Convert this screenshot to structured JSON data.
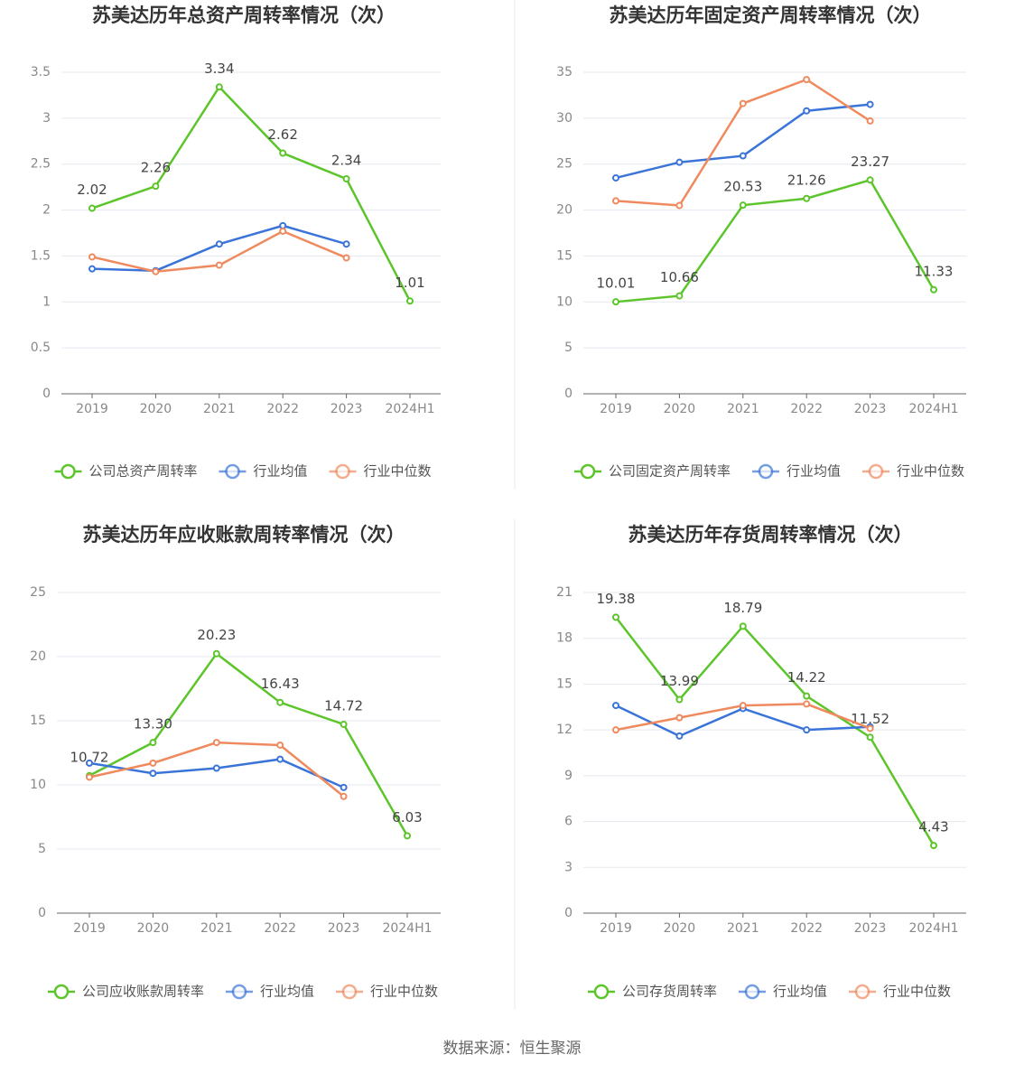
{
  "chart_data": [
    {
      "type": "line",
      "title": "苏美达历年总资产周转率情况（次）",
      "categories": [
        "2019",
        "2020",
        "2021",
        "2022",
        "2023",
        "2024H1"
      ],
      "ylim": [
        0,
        3.5
      ],
      "yticks": [
        0,
        0.5,
        1,
        1.5,
        2,
        2.5,
        3,
        3.5
      ],
      "grid": true,
      "legend": "bottom",
      "series": [
        {
          "name": "公司总资产周转率",
          "color": "#5cc52b",
          "values": [
            2.02,
            2.26,
            3.34,
            2.62,
            2.34,
            1.01
          ],
          "value_labels": [
            "2.02",
            "2.26",
            "3.34",
            "2.62",
            "2.34",
            "1.01"
          ]
        },
        {
          "name": "行业均值",
          "color": "#3b74d8",
          "values": [
            1.36,
            1.34,
            1.63,
            1.83,
            1.63,
            null
          ]
        },
        {
          "name": "行业中位数",
          "color": "#ef8a5f",
          "values": [
            1.49,
            1.33,
            1.4,
            1.77,
            1.48,
            null
          ]
        }
      ]
    },
    {
      "type": "line",
      "title": "苏美达历年固定资产周转率情况（次）",
      "categories": [
        "2019",
        "2020",
        "2021",
        "2022",
        "2023",
        "2024H1"
      ],
      "ylim": [
        0,
        35
      ],
      "yticks": [
        0,
        5,
        10,
        15,
        20,
        25,
        30,
        35
      ],
      "grid": true,
      "legend": "bottom",
      "series": [
        {
          "name": "公司固定资产周转率",
          "color": "#5cc52b",
          "values": [
            10.01,
            10.66,
            20.53,
            21.26,
            23.27,
            11.33
          ],
          "value_labels": [
            "10.01",
            "10.66",
            "20.53",
            "21.26",
            "23.27",
            "11.33"
          ]
        },
        {
          "name": "行业均值",
          "color": "#3b74d8",
          "values": [
            23.5,
            25.2,
            25.9,
            30.8,
            31.5,
            null
          ]
        },
        {
          "name": "行业中位数",
          "color": "#ef8a5f",
          "values": [
            21.0,
            20.5,
            31.6,
            34.2,
            29.7,
            null
          ]
        }
      ]
    },
    {
      "type": "line",
      "title": "苏美达历年应收账款周转率情况（次）",
      "categories": [
        "2019",
        "2020",
        "2021",
        "2022",
        "2023",
        "2024H1"
      ],
      "ylim": [
        0,
        25
      ],
      "yticks": [
        0,
        5,
        10,
        15,
        20,
        25
      ],
      "grid": true,
      "legend": "bottom",
      "series": [
        {
          "name": "公司应收账款周转率",
          "color": "#5cc52b",
          "values": [
            10.72,
            13.3,
            20.23,
            16.43,
            14.72,
            6.03
          ],
          "value_labels": [
            "10.72",
            "13.30",
            "20.23",
            "16.43",
            "14.72",
            "6.03"
          ]
        },
        {
          "name": "行业均值",
          "color": "#3b74d8",
          "values": [
            11.7,
            10.9,
            11.3,
            12.0,
            9.8,
            null
          ]
        },
        {
          "name": "行业中位数",
          "color": "#ef8a5f",
          "values": [
            10.6,
            11.7,
            13.3,
            13.1,
            9.1,
            null
          ]
        }
      ]
    },
    {
      "type": "line",
      "title": "苏美达历年存货周转率情况（次）",
      "categories": [
        "2019",
        "2020",
        "2021",
        "2022",
        "2023",
        "2024H1"
      ],
      "ylim": [
        0,
        21
      ],
      "yticks": [
        0,
        3,
        6,
        9,
        12,
        15,
        18,
        21
      ],
      "grid": true,
      "legend": "bottom",
      "series": [
        {
          "name": "公司存货周转率",
          "color": "#5cc52b",
          "values": [
            19.38,
            13.99,
            18.79,
            14.22,
            11.52,
            4.43
          ],
          "value_labels": [
            "19.38",
            "13.99",
            "18.79",
            "14.22",
            "11.52",
            "4.43"
          ]
        },
        {
          "name": "行业均值",
          "color": "#3b74d8",
          "values": [
            13.6,
            11.6,
            13.4,
            12.0,
            12.2,
            null
          ]
        },
        {
          "name": "行业中位数",
          "color": "#ef8a5f",
          "values": [
            12.0,
            12.8,
            13.6,
            13.7,
            12.1,
            null
          ]
        }
      ]
    }
  ],
  "source": "数据来源：恒生聚源"
}
